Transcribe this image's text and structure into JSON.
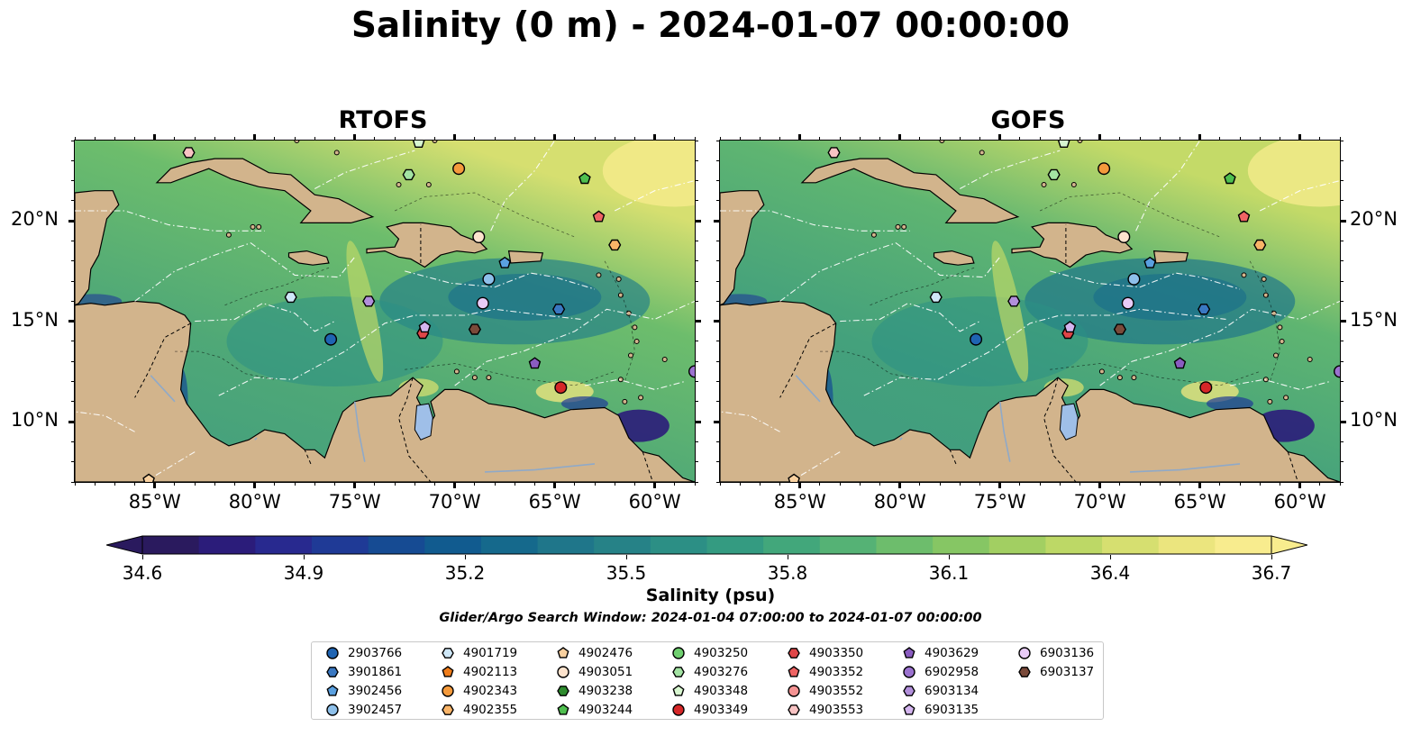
{
  "title": "Salinity (0 m) - 2024-01-07 00:00:00",
  "panels": [
    {
      "title": "RTOFS"
    },
    {
      "title": "GOFS"
    }
  ],
  "lon_ticks": [
    "85°W",
    "80°W",
    "75°W",
    "70°W",
    "65°W",
    "60°W"
  ],
  "lat_ticks": [
    "20°N",
    "15°N",
    "10°N"
  ],
  "map_extent": {
    "lon": [
      -89,
      -58
    ],
    "lat": [
      7,
      24
    ]
  },
  "colorbar": {
    "label": "Salinity (psu)",
    "ticks": [
      "34.6",
      "34.9",
      "35.2",
      "35.5",
      "35.8",
      "36.1",
      "36.4",
      "36.7"
    ],
    "range": [
      34.6,
      36.7
    ],
    "extend": "both",
    "colormap": "haline",
    "colors": [
      "#2a1a5e",
      "#2b1c7a",
      "#28298f",
      "#1f3a96",
      "#164b93",
      "#115b8f",
      "#15698c",
      "#1f768a",
      "#268287",
      "#2c8f85",
      "#349b81",
      "#42a77b",
      "#55b275",
      "#6dbd6c",
      "#86c664",
      "#a2cf62",
      "#bdd866",
      "#d6df70",
      "#ebe57e",
      "#f8ec8e"
    ]
  },
  "chart_data": {
    "type": "map",
    "search_window": "Glider/Argo Search Window: 2024-01-04 07:00:00 to 2024-01-07 00:00:00",
    "platforms": [
      {
        "id": "2903766",
        "marker": "circle",
        "color": "#1f64b2",
        "lon": -76.2,
        "lat": 14.1
      },
      {
        "id": "3901861",
        "marker": "hexagon",
        "color": "#3a78c2",
        "lon": -64.8,
        "lat": 15.6
      },
      {
        "id": "3902456",
        "marker": "pentagon",
        "color": "#5aa0e0",
        "lon": -67.5,
        "lat": 17.9
      },
      {
        "id": "3902457",
        "marker": "circle",
        "color": "#8ec0ea",
        "lon": -68.3,
        "lat": 17.1
      },
      {
        "id": "4901719",
        "marker": "hexagon",
        "color": "#cfe8f8",
        "lon": -78.2,
        "lat": 16.2
      },
      {
        "id": "4902113",
        "marker": "pentagon",
        "color": "#f07d1a",
        "lon": null,
        "lat": null
      },
      {
        "id": "4902343",
        "marker": "circle",
        "color": "#f49a3c",
        "lon": -69.8,
        "lat": 22.6
      },
      {
        "id": "4902355",
        "marker": "hexagon",
        "color": "#f9b468",
        "lon": -62.0,
        "lat": 18.8
      },
      {
        "id": "4902476",
        "marker": "pentagon",
        "color": "#f9d1a0",
        "lon": -85.3,
        "lat": 7.1
      },
      {
        "id": "4903051",
        "marker": "circle",
        "color": "#fde3cd",
        "lon": -68.8,
        "lat": 19.2
      },
      {
        "id": "4903238",
        "marker": "hexagon",
        "color": "#2e8b2e",
        "lon": null,
        "lat": null
      },
      {
        "id": "4903244",
        "marker": "pentagon",
        "color": "#4fbf4f",
        "lon": -63.5,
        "lat": 22.1
      },
      {
        "id": "4903250",
        "marker": "circle",
        "color": "#6fcf6f",
        "lon": null,
        "lat": null
      },
      {
        "id": "4903276",
        "marker": "hexagon",
        "color": "#a3e3a3",
        "lon": -72.3,
        "lat": 22.3
      },
      {
        "id": "4903348",
        "marker": "pentagon",
        "color": "#d8f7d0",
        "lon": -71.8,
        "lat": 23.9
      },
      {
        "id": "4903349",
        "marker": "circle",
        "color": "#d62728",
        "lon": -64.7,
        "lat": 11.7
      },
      {
        "id": "4903350",
        "marker": "hexagon",
        "color": "#e04648",
        "lon": -71.6,
        "lat": 14.4
      },
      {
        "id": "4903352",
        "marker": "pentagon",
        "color": "#ef6464",
        "lon": -62.8,
        "lat": 20.2
      },
      {
        "id": "4903552",
        "marker": "circle",
        "color": "#f59393",
        "lon": null,
        "lat": null
      },
      {
        "id": "4903553",
        "marker": "hexagon",
        "color": "#f8c3c3",
        "lon": -83.3,
        "lat": 23.4
      },
      {
        "id": "4903629",
        "marker": "pentagon",
        "color": "#8a5cc0",
        "lon": -66.0,
        "lat": 12.9
      },
      {
        "id": "6902958",
        "marker": "circle",
        "color": "#9b72cf",
        "lon": -58.0,
        "lat": 12.5
      },
      {
        "id": "6903134",
        "marker": "hexagon",
        "color": "#b28fdb",
        "lon": -74.3,
        "lat": 16.0
      },
      {
        "id": "6903135",
        "marker": "pentagon",
        "color": "#d4b5ef",
        "lon": -71.5,
        "lat": 14.7
      },
      {
        "id": "6903136",
        "marker": "circle",
        "color": "#e8cbf7",
        "lon": -68.6,
        "lat": 15.9
      },
      {
        "id": "6903137",
        "marker": "hexagon",
        "color": "#7a4a3a",
        "lon": -69.0,
        "lat": 14.6
      }
    ]
  }
}
